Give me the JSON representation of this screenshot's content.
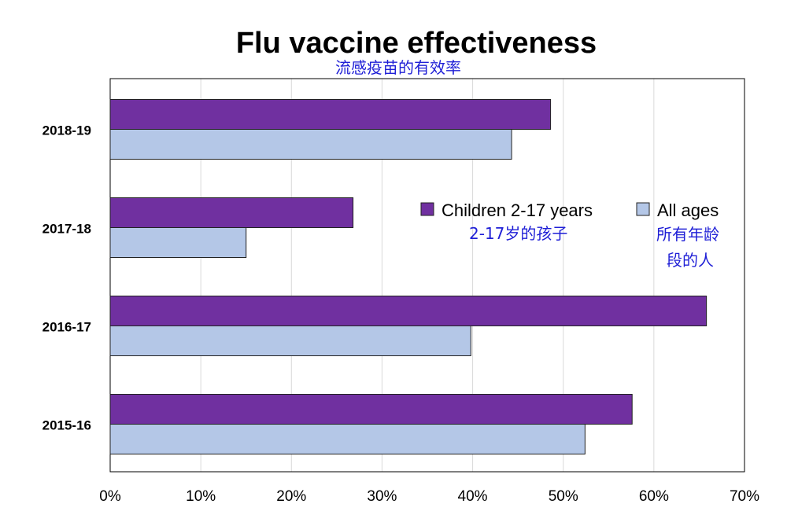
{
  "chart_data": {
    "type": "bar",
    "orientation": "horizontal",
    "title": "Flu vaccine effectiveness",
    "subtitle": "流感疫苗的有效率",
    "categories": [
      "2018-19",
      "2017-18",
      "2016-17",
      "2015-16"
    ],
    "series": [
      {
        "name": "Children 2-17 years",
        "name_zh": "2-17岁的孩子",
        "color": "#7030a0",
        "values": [
          48.6,
          26.8,
          65.8,
          57.6
        ]
      },
      {
        "name": "All ages",
        "name_zh": "所有年龄段的人",
        "name_zh_lines": [
          "所有年龄",
          "段的人"
        ],
        "color": "#b4c7e7",
        "values": [
          44.3,
          15,
          39.8,
          52.4
        ]
      }
    ],
    "xlim": [
      0,
      70
    ],
    "xticks": [
      "0%",
      "10%",
      "20%",
      "30%",
      "40%",
      "50%",
      "60%",
      "70%"
    ],
    "xlabel": "",
    "ylabel": "",
    "grid": "vertical",
    "legend_position": "center-right"
  }
}
